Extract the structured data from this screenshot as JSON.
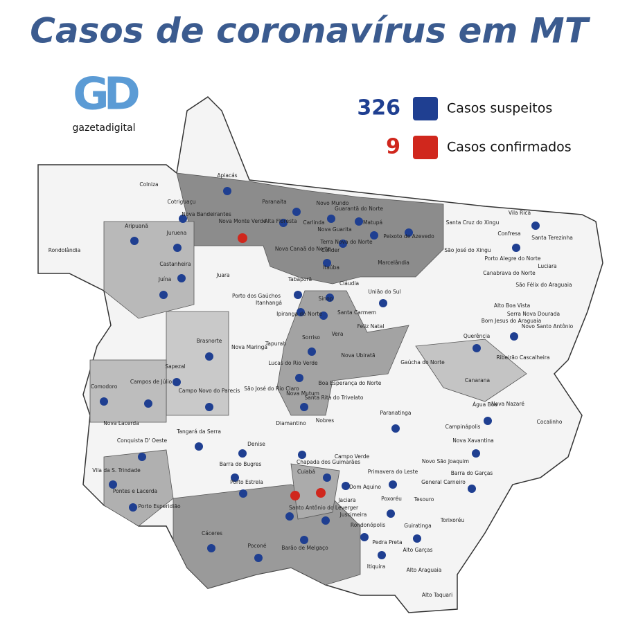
{
  "header": {
    "title": "Casos de coronavírus em MT"
  },
  "logo": {
    "mark": "GD",
    "caption": "gazetadigital"
  },
  "legend": [
    {
      "count": "326",
      "label": "Casos suspeitos",
      "color": "#1f3f91"
    },
    {
      "count": "9",
      "label": "Casos confirmados",
      "color": "#d0271d"
    }
  ],
  "municipalities": [
    "Colniza",
    "Apiacás",
    "Cotriguaçu",
    "Paranaíta",
    "Nova Bandeirantes",
    "Nova Monte Verde",
    "Alta Floresta",
    "Novo Mundo",
    "Guarantã do Norte",
    "Carlinda",
    "Matupá",
    "Peixoto de Azevedo",
    "Aripuanã",
    "Juruena",
    "Nova Canaã do Norte",
    "Nova Guarita",
    "Terra Nova do Norte",
    "Colíder",
    "Marcelândia",
    "Santa Cruz do Xingu",
    "Vila Rica",
    "Confresa",
    "Santa Terezinha",
    "São José do Xingu",
    "Porto Alegre do Norte",
    "Luciara",
    "Canabrava do Norte",
    "São Félix do Araguaia",
    "Rondolândia",
    "Castanheira",
    "Juína",
    "Juara",
    "Itaúba",
    "Tabaporã",
    "Cláudia",
    "Porto dos Gaúchos",
    "União do Sul",
    "Alto Boa Vista",
    "Serra Nova Dourada",
    "Bom Jesus do Araguaia",
    "Novo Santo Antônio",
    "Sinop",
    "Itanhangá",
    "Ipiranga do Norte",
    "Santa Carmem",
    "Feliz Natal",
    "Vera",
    "Querência",
    "Brasnorte",
    "Nova Maringá",
    "Tapurah",
    "Sorriso",
    "Ribeirão Cascalheira",
    "Gaúcha do Norte",
    "Lucas do Rio Verde",
    "Nova Ubiratã",
    "Sapezal",
    "Campos de Júlio",
    "Campo Novo do Parecis",
    "São José do Rio Claro",
    "Boa Esperança do Norte",
    "Canarana",
    "Comodoro",
    "Nova Mutum",
    "Santa Rita do Trivelato",
    "Água Boa",
    "Nova Nazaré",
    "Paranatinga",
    "Nova Lacerda",
    "Diamantino",
    "Nobres",
    "Cocalinho",
    "Conquista D' Oeste",
    "Tangará da Serra",
    "Campinápolis",
    "Nova Xavantina",
    "Denise",
    "Chapada dos Guimarães",
    "Novo São Joaquim",
    "Vila da S. Trindade",
    "Barra do Bugres",
    "Primavera do Leste",
    "Campo Verde",
    "Barra do Garças",
    "Pontes e Lacerda",
    "General Carneiro",
    "Dom Aquino",
    "Cuiabá",
    "Porto Estrela",
    "Porto Esperidião",
    "Jaciara",
    "Tesouro",
    "Poxoréu",
    "Santo Antônio do Leverger",
    "Juscimeira",
    "Torixoréu",
    "Cáceres",
    "Rondonópolis",
    "Guiratinga",
    "Poconé",
    "Barão de Melgaço",
    "Pedra Preta",
    "Alto Garças",
    "Itiquira",
    "Alto Araguaia",
    "Alto Taquari"
  ]
}
